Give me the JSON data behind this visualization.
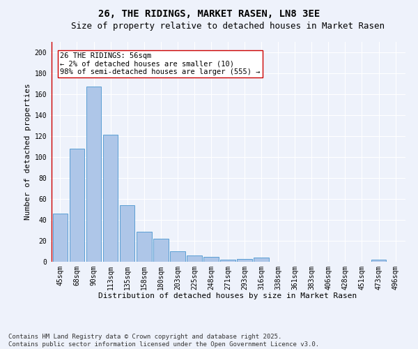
{
  "title1": "26, THE RIDINGS, MARKET RASEN, LN8 3EE",
  "title2": "Size of property relative to detached houses in Market Rasen",
  "xlabel": "Distribution of detached houses by size in Market Rasen",
  "ylabel": "Number of detached properties",
  "categories": [
    "45sqm",
    "68sqm",
    "90sqm",
    "113sqm",
    "135sqm",
    "158sqm",
    "180sqm",
    "203sqm",
    "225sqm",
    "248sqm",
    "271sqm",
    "293sqm",
    "316sqm",
    "338sqm",
    "361sqm",
    "383sqm",
    "406sqm",
    "428sqm",
    "451sqm",
    "473sqm",
    "496sqm"
  ],
  "values": [
    46,
    108,
    167,
    121,
    54,
    29,
    22,
    10,
    6,
    5,
    2,
    3,
    4,
    0,
    0,
    0,
    0,
    0,
    0,
    2,
    0
  ],
  "bar_color": "#aec6e8",
  "bar_edge_color": "#5a9fd4",
  "marker_color": "#cc0000",
  "annotation_text": "26 THE RIDINGS: 56sqm\n← 2% of detached houses are smaller (10)\n98% of semi-detached houses are larger (555) →",
  "annotation_box_color": "#ffffff",
  "annotation_box_edge": "#cc0000",
  "background_color": "#eef2fb",
  "grid_color": "#ffffff",
  "ylim": [
    0,
    210
  ],
  "yticks": [
    0,
    20,
    40,
    60,
    80,
    100,
    120,
    140,
    160,
    180,
    200
  ],
  "footer": "Contains HM Land Registry data © Crown copyright and database right 2025.\nContains public sector information licensed under the Open Government Licence v3.0.",
  "title1_fontsize": 10,
  "title2_fontsize": 9,
  "xlabel_fontsize": 8,
  "ylabel_fontsize": 8,
  "tick_fontsize": 7,
  "annotation_fontsize": 7.5,
  "footer_fontsize": 6.5
}
